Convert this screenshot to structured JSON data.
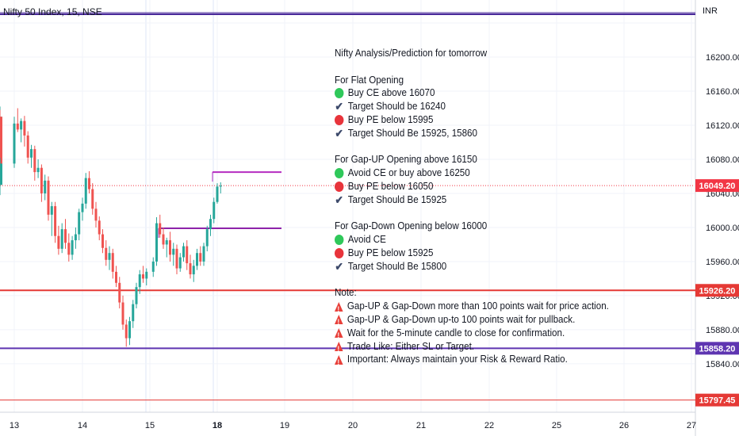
{
  "header": {
    "title": "Nifty 50 Index, 15, NSE",
    "currency": "INR"
  },
  "chart_data": {
    "type": "candlestick",
    "symbol": "Nifty 50 Index",
    "interval": "15",
    "exchange": "NSE",
    "x_ticks": [
      "13",
      "14",
      "15",
      "18",
      "19",
      "20",
      "21",
      "22",
      "25",
      "26",
      "27"
    ],
    "y_ticks": [
      15840,
      15880,
      15920,
      15960,
      16000,
      16040,
      16080,
      16120,
      16160,
      16200,
      16240
    ],
    "y_tick_labels": [
      "15840.00",
      "15880.00",
      "15920.00",
      "15960.00",
      "16000.00",
      "16040.00",
      "16080.00",
      "16120.00",
      "16160.00",
      "16200.00",
      ""
    ],
    "y_range": [
      15785,
      16254
    ],
    "levels": [
      {
        "name": "upper-blue-line",
        "price": 16251,
        "color": "#4a2a9a"
      },
      {
        "name": "red-support-line",
        "price": 15926.2,
        "color": "#e53935",
        "label": "15926.20"
      },
      {
        "name": "blue-support-line",
        "price": 15858.2,
        "color": "#5e35b1",
        "label": "15858.20"
      },
      {
        "name": "bottom-red-line",
        "price": 15797.45,
        "color": "#e53935",
        "label": "15797.45"
      },
      {
        "name": "last-price",
        "price": 16049.2,
        "color": "#f23645",
        "label": "16049.20"
      }
    ],
    "segments": [
      {
        "name": "upper-target-segment",
        "price": 16065,
        "from": 18.0,
        "to": 19.0,
        "color": "#b52cc0"
      },
      {
        "name": "lower-target-segment",
        "price": 15999,
        "from": 15.2,
        "to": 19.0,
        "color": "#8e24aa"
      }
    ],
    "candles": [
      {
        "x": 12.85,
        "o": 16120,
        "h": 16142,
        "l": 16100,
        "c": 16130
      },
      {
        "x": 12.9,
        "o": 16130,
        "h": 16138,
        "l": 16040,
        "c": 16050
      },
      {
        "x": 12.95,
        "o": 16050,
        "h": 16082,
        "l": 16038,
        "c": 16075
      },
      {
        "x": 13.0,
        "o": 16075,
        "h": 16130,
        "l": 16070,
        "c": 16122
      },
      {
        "x": 13.05,
        "o": 16122,
        "h": 16140,
        "l": 16112,
        "c": 16115
      },
      {
        "x": 13.1,
        "o": 16115,
        "h": 16128,
        "l": 16100,
        "c": 16125
      },
      {
        "x": 13.15,
        "o": 16125,
        "h": 16131,
        "l": 16095,
        "c": 16108
      },
      {
        "x": 13.2,
        "o": 16108,
        "h": 16113,
        "l": 16075,
        "c": 16082
      },
      {
        "x": 13.25,
        "o": 16082,
        "h": 16097,
        "l": 16070,
        "c": 16092
      },
      {
        "x": 13.3,
        "o": 16092,
        "h": 16096,
        "l": 16055,
        "c": 16065
      },
      {
        "x": 13.35,
        "o": 16065,
        "h": 16080,
        "l": 16058,
        "c": 16070
      },
      {
        "x": 13.4,
        "o": 16070,
        "h": 16074,
        "l": 16030,
        "c": 16040
      },
      {
        "x": 13.45,
        "o": 16040,
        "h": 16062,
        "l": 16032,
        "c": 16055
      },
      {
        "x": 13.5,
        "o": 16055,
        "h": 16060,
        "l": 16008,
        "c": 16015
      },
      {
        "x": 13.55,
        "o": 16015,
        "h": 16030,
        "l": 15990,
        "c": 16025
      },
      {
        "x": 13.6,
        "o": 16025,
        "h": 16030,
        "l": 15982,
        "c": 15990
      },
      {
        "x": 13.65,
        "o": 15990,
        "h": 16002,
        "l": 15968,
        "c": 15975
      },
      {
        "x": 13.7,
        "o": 15975,
        "h": 16005,
        "l": 15970,
        "c": 15998
      },
      {
        "x": 13.75,
        "o": 15998,
        "h": 16010,
        "l": 15975,
        "c": 15982
      },
      {
        "x": 13.8,
        "o": 15982,
        "h": 15993,
        "l": 15960,
        "c": 15968
      },
      {
        "x": 13.85,
        "o": 15968,
        "h": 15990,
        "l": 15962,
        "c": 15985
      },
      {
        "x": 13.9,
        "o": 15985,
        "h": 16000,
        "l": 15975,
        "c": 15992
      },
      {
        "x": 13.95,
        "o": 15992,
        "h": 16022,
        "l": 15985,
        "c": 16018
      },
      {
        "x": 14.0,
        "o": 16018,
        "h": 16035,
        "l": 16008,
        "c": 16028
      },
      {
        "x": 14.05,
        "o": 16028,
        "h": 16064,
        "l": 16022,
        "c": 16058
      },
      {
        "x": 14.1,
        "o": 16058,
        "h": 16066,
        "l": 16040,
        "c": 16045
      },
      {
        "x": 14.15,
        "o": 16045,
        "h": 16052,
        "l": 16015,
        "c": 16022
      },
      {
        "x": 14.2,
        "o": 16022,
        "h": 16030,
        "l": 16000,
        "c": 16008
      },
      {
        "x": 14.25,
        "o": 16008,
        "h": 16013,
        "l": 15985,
        "c": 15992
      },
      {
        "x": 14.3,
        "o": 15992,
        "h": 15998,
        "l": 15970,
        "c": 15976
      },
      {
        "x": 14.35,
        "o": 15976,
        "h": 15985,
        "l": 15955,
        "c": 15962
      },
      {
        "x": 14.4,
        "o": 15962,
        "h": 15978,
        "l": 15950,
        "c": 15970
      },
      {
        "x": 14.45,
        "o": 15970,
        "h": 15975,
        "l": 15940,
        "c": 15948
      },
      {
        "x": 14.5,
        "o": 15948,
        "h": 15955,
        "l": 15930,
        "c": 15935
      },
      {
        "x": 14.55,
        "o": 15935,
        "h": 15942,
        "l": 15905,
        "c": 15912
      },
      {
        "x": 14.6,
        "o": 15912,
        "h": 15920,
        "l": 15880,
        "c": 15886
      },
      {
        "x": 14.65,
        "o": 15886,
        "h": 15892,
        "l": 15860,
        "c": 15870
      },
      {
        "x": 14.7,
        "o": 15870,
        "h": 15895,
        "l": 15862,
        "c": 15890
      },
      {
        "x": 14.75,
        "o": 15890,
        "h": 15915,
        "l": 15882,
        "c": 15910
      },
      {
        "x": 14.8,
        "o": 15910,
        "h": 15935,
        "l": 15905,
        "c": 15930
      },
      {
        "x": 14.85,
        "o": 15930,
        "h": 15950,
        "l": 15922,
        "c": 15945
      },
      {
        "x": 14.9,
        "o": 15945,
        "h": 15955,
        "l": 15935,
        "c": 15940
      },
      {
        "x": 14.95,
        "o": 15940,
        "h": 15952,
        "l": 15932,
        "c": 15948
      },
      {
        "x": 15.05,
        "o": 15948,
        "h": 15965,
        "l": 15942,
        "c": 15960
      },
      {
        "x": 15.1,
        "o": 15960,
        "h": 16012,
        "l": 15955,
        "c": 16005
      },
      {
        "x": 15.15,
        "o": 16005,
        "h": 16015,
        "l": 15988,
        "c": 15992
      },
      {
        "x": 15.2,
        "o": 15992,
        "h": 16000,
        "l": 15975,
        "c": 15980
      },
      {
        "x": 15.25,
        "o": 15980,
        "h": 15988,
        "l": 15965,
        "c": 15985
      },
      {
        "x": 15.3,
        "o": 15985,
        "h": 15995,
        "l": 15960,
        "c": 15968
      },
      {
        "x": 15.35,
        "o": 15968,
        "h": 15982,
        "l": 15955,
        "c": 15975
      },
      {
        "x": 15.4,
        "o": 15975,
        "h": 15980,
        "l": 15945,
        "c": 15952
      },
      {
        "x": 15.45,
        "o": 15952,
        "h": 15970,
        "l": 15948,
        "c": 15965
      },
      {
        "x": 15.5,
        "o": 15965,
        "h": 15982,
        "l": 15960,
        "c": 15978
      },
      {
        "x": 15.55,
        "o": 15978,
        "h": 15985,
        "l": 15950,
        "c": 15958
      },
      {
        "x": 15.6,
        "o": 15958,
        "h": 15968,
        "l": 15940,
        "c": 15945
      },
      {
        "x": 15.65,
        "o": 15945,
        "h": 15962,
        "l": 15936,
        "c": 15955
      },
      {
        "x": 15.7,
        "o": 15955,
        "h": 15975,
        "l": 15950,
        "c": 15970
      },
      {
        "x": 15.75,
        "o": 15970,
        "h": 15978,
        "l": 15955,
        "c": 15960
      },
      {
        "x": 15.8,
        "o": 15960,
        "h": 15982,
        "l": 15955,
        "c": 15978
      },
      {
        "x": 15.85,
        "o": 15978,
        "h": 16002,
        "l": 15972,
        "c": 15998
      },
      {
        "x": 15.9,
        "o": 15998,
        "h": 16015,
        "l": 15990,
        "c": 16010
      },
      {
        "x": 15.95,
        "o": 16010,
        "h": 16035,
        "l": 16005,
        "c": 16030
      },
      {
        "x": 18.0,
        "o": 16030,
        "h": 16052,
        "l": 16028,
        "c": 16048
      },
      {
        "x": 18.05,
        "o": 16048,
        "h": 16053,
        "l": 16040,
        "c": 16049
      }
    ]
  },
  "notes": {
    "title": "Nifty Analysis/Prediction for tomorrow",
    "flat": {
      "heading": "For Flat Opening",
      "items": [
        {
          "icon": "green-circle-icon",
          "text": "Buy CE above 16070"
        },
        {
          "icon": "check-icon",
          "text": "Target Should be 16240"
        },
        {
          "icon": "red-circle-icon",
          "text": "Buy PE below 15995"
        },
        {
          "icon": "check-icon",
          "text": "Target Should Be 15925, 15860"
        }
      ]
    },
    "gapup": {
      "heading": "For Gap-UP Opening above 16150",
      "items": [
        {
          "icon": "green-circle-icon",
          "text": "Avoid CE or buy above 16250"
        },
        {
          "icon": "red-circle-icon",
          "text": "Buy PE below 16050"
        },
        {
          "icon": "check-icon",
          "text": "Target Should Be 15925"
        }
      ]
    },
    "gapdown": {
      "heading": "For Gap-Down Opening below 16000",
      "items": [
        {
          "icon": "green-circle-icon",
          "text": "Avoid CE"
        },
        {
          "icon": "red-circle-icon",
          "text": "Buy PE below 15925"
        },
        {
          "icon": "check-icon",
          "text": "Target Should Be 15800"
        }
      ]
    },
    "note": {
      "heading": "Note:",
      "items": [
        {
          "icon": "warning-icon",
          "text": "Gap-UP & Gap-Down more than 100 points wait for price action."
        },
        {
          "icon": "warning-icon",
          "text": "Gap-UP & Gap-Down up-to 100 points wait for pullback."
        },
        {
          "icon": "warning-icon",
          "text": "Wait for the 5-minute candle to close for confirmation."
        },
        {
          "icon": "warning-icon",
          "text": "Trade Like: Either SL or Target."
        },
        {
          "icon": "warning-icon",
          "text": "Important: Always maintain your Risk & Reward Ratio."
        }
      ]
    }
  }
}
